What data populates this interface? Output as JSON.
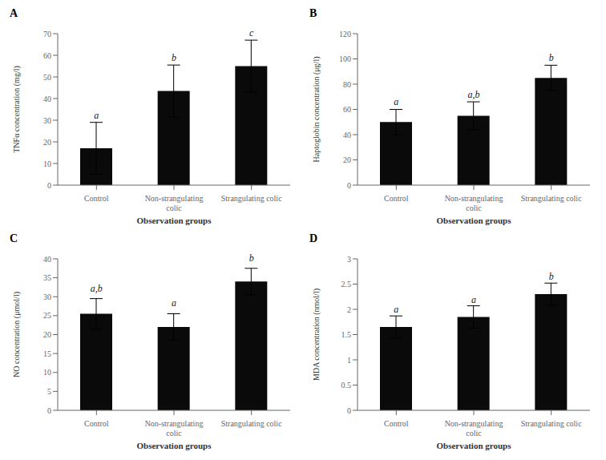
{
  "chart_data": [
    {
      "type": "bar",
      "title": "A",
      "xlabel": "Observation groups",
      "ylabel": "TNFα concentration (mg/l)",
      "categories": [
        "Control",
        "Non-strangulating\ncolic",
        "Strangulating colic"
      ],
      "values": [
        17.0,
        43.5,
        55.0
      ],
      "errors": [
        12.0,
        12.0,
        12.0
      ],
      "annotations": [
        {
          "text": "a",
          "x": "Control",
          "y": 30.0
        },
        {
          "text": "b",
          "x": "Non-strangulating\ncolic",
          "y": 56.5
        },
        {
          "text": "c",
          "x": "Strangulating colic",
          "y": 68.0
        }
      ],
      "color": "#0a0a0a",
      "ylim": [
        0,
        70
      ],
      "yticks": [
        0,
        10,
        20,
        30,
        40,
        50,
        60,
        70
      ],
      "grid": false
    },
    {
      "type": "bar",
      "title": "B",
      "xlabel": "Observation groups",
      "ylabel": "Haptoglobin concentration (μg/l)",
      "categories": [
        "Control",
        "Non-strangulating\ncolic",
        "Strangulating colic"
      ],
      "values": [
        50.0,
        55.0,
        85.0
      ],
      "errors": [
        10.0,
        11.0,
        10.0
      ],
      "annotations": [
        {
          "text": "a",
          "x": "Control",
          "y": 62.0
        },
        {
          "text": "a,b",
          "x": "Non-strangulating\ncolic",
          "y": 68.0
        },
        {
          "text": "b",
          "x": "Strangulating colic",
          "y": 97.0
        }
      ],
      "color": "#0a0a0a",
      "ylim": [
        0,
        120
      ],
      "yticks": [
        0,
        20,
        40,
        60,
        80,
        100,
        120
      ],
      "grid": false
    },
    {
      "type": "bar",
      "title": "C",
      "xlabel": "Observation groups",
      "ylabel": "NO concentration (μmol/l)",
      "categories": [
        "Control",
        "Non-strangulating\ncolic",
        "Strangulating colic"
      ],
      "values": [
        25.5,
        22.0,
        34.0
      ],
      "errors": [
        4.0,
        3.5,
        3.5
      ],
      "annotations": [
        {
          "text": "a,b",
          "x": "Control",
          "y": 31.0
        },
        {
          "text": "a",
          "x": "Non-strangulating\ncolic",
          "y": 27.0
        },
        {
          "text": "b",
          "x": "Strangulating colic",
          "y": 39.0
        }
      ],
      "color": "#0a0a0a",
      "ylim": [
        0,
        40
      ],
      "yticks": [
        0,
        5,
        10,
        15,
        20,
        25,
        30,
        35,
        40
      ],
      "grid": false
    },
    {
      "type": "bar",
      "title": "D",
      "xlabel": "Observation groups",
      "ylabel": "MDA concentration (nmol/l)",
      "categories": [
        "Control",
        "Non-strangulating\ncolic",
        "Strangulating colic"
      ],
      "values": [
        1.65,
        1.85,
        2.3
      ],
      "errors": [
        0.22,
        0.22,
        0.22
      ],
      "annotations": [
        {
          "text": "a",
          "x": "Control",
          "y": 1.9
        },
        {
          "text": "a",
          "x": "Non-strangulating\ncolic",
          "y": 2.1
        },
        {
          "text": "b",
          "x": "Strangulating colic",
          "y": 2.56
        }
      ],
      "color": "#0a0a0a",
      "ylim": [
        0,
        3
      ],
      "yticks": [
        0,
        0.5,
        1.0,
        1.5,
        2.0,
        2.5,
        3.0
      ],
      "grid": false
    }
  ]
}
